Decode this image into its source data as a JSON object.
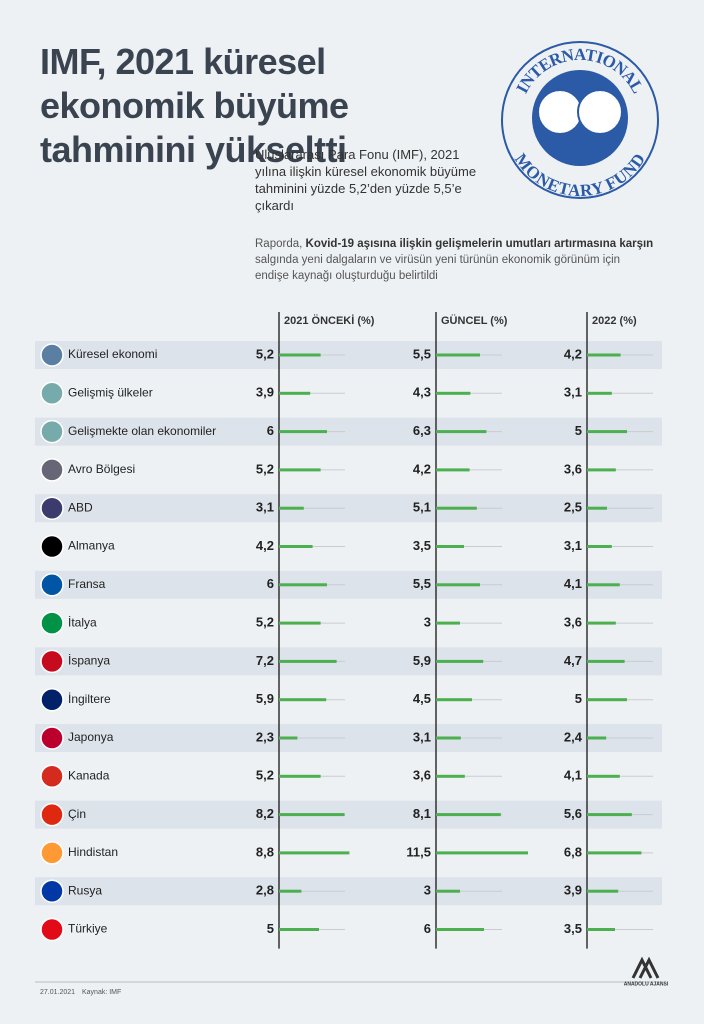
{
  "chart_data": {
    "type": "bar",
    "title": "IMF, 2021 küresel ekonomik büyüme tahminini yükseltti",
    "description": "Uluslararası Para Fonu (IMF), 2021 yılına ilişkin küresel ekonomik büyüme tahminini yüzde 5,2’den yüzde 5,5’e çıkardı",
    "note_parts": [
      "Raporda, ",
      "Kovid-19 aşısına ilişkin gelişmelerin umutları artırmasına karşın",
      " salgında yeni dalgaların ve virüsün yeni türünün ekonomik görünüm için endişe kaynağı oluşturduğu belirtildi"
    ],
    "logo_text": [
      "INTERNATIONAL",
      "MONETARY FUND"
    ],
    "categories": [
      "Küresel ekonomi",
      "Gelişmiş ülkeler",
      "Gelişmekte olan ekonomiler",
      "Avro Bölgesi",
      "ABD",
      "Almanya",
      "Fransa",
      "İtalya",
      "İspanya",
      "İngiltere",
      "Japonya",
      "Kanada",
      "Çin",
      "Hindistan",
      "Rusya",
      "Türkiye"
    ],
    "series": [
      {
        "name": "2021 ÖNCEKİ (%)",
        "color": "#4caf50",
        "values": [
          5.2,
          3.9,
          6,
          5.2,
          3.1,
          4.2,
          6,
          5.2,
          7.2,
          5.9,
          2.3,
          5.2,
          8.2,
          8.8,
          2.8,
          5
        ],
        "value_labels": [
          "5,2",
          "3,9",
          "6",
          "5,2",
          "3,1",
          "4,2",
          "6",
          "5,2",
          "7,2",
          "5,9",
          "2,3",
          "5,2",
          "8,2",
          "8,8",
          "2,8",
          "5"
        ]
      },
      {
        "name": "GÜNCEL (%)",
        "color": "#4caf50",
        "values": [
          5.5,
          4.3,
          6.3,
          4.2,
          5.1,
          3.5,
          5.5,
          3,
          5.9,
          4.5,
          3.1,
          3.6,
          8.1,
          11.5,
          3,
          6
        ],
        "value_labels": [
          "5,5",
          "4,3",
          "6,3",
          "4,2",
          "5,1",
          "3,5",
          "5,5",
          "3",
          "5,9",
          "4,5",
          "3,1",
          "3,6",
          "8,1",
          "11,5",
          "3",
          "6"
        ]
      },
      {
        "name": "2022 (%)",
        "color": "#4caf50",
        "values": [
          4.2,
          3.1,
          5,
          3.6,
          2.5,
          3.1,
          4.1,
          3.6,
          4.7,
          5,
          2.4,
          4.1,
          5.6,
          6.8,
          3.9,
          3.5
        ],
        "value_labels": [
          "4,2",
          "3,1",
          "5",
          "3,6",
          "2,5",
          "3,1",
          "4,1",
          "3,6",
          "4,7",
          "5",
          "2,4",
          "4,1",
          "5,6",
          "6,8",
          "3,9",
          "3,5"
        ]
      }
    ],
    "date": "27.01.2021",
    "source": "Kaynak: IMF",
    "agency": "ANADOLU AJANSI"
  }
}
